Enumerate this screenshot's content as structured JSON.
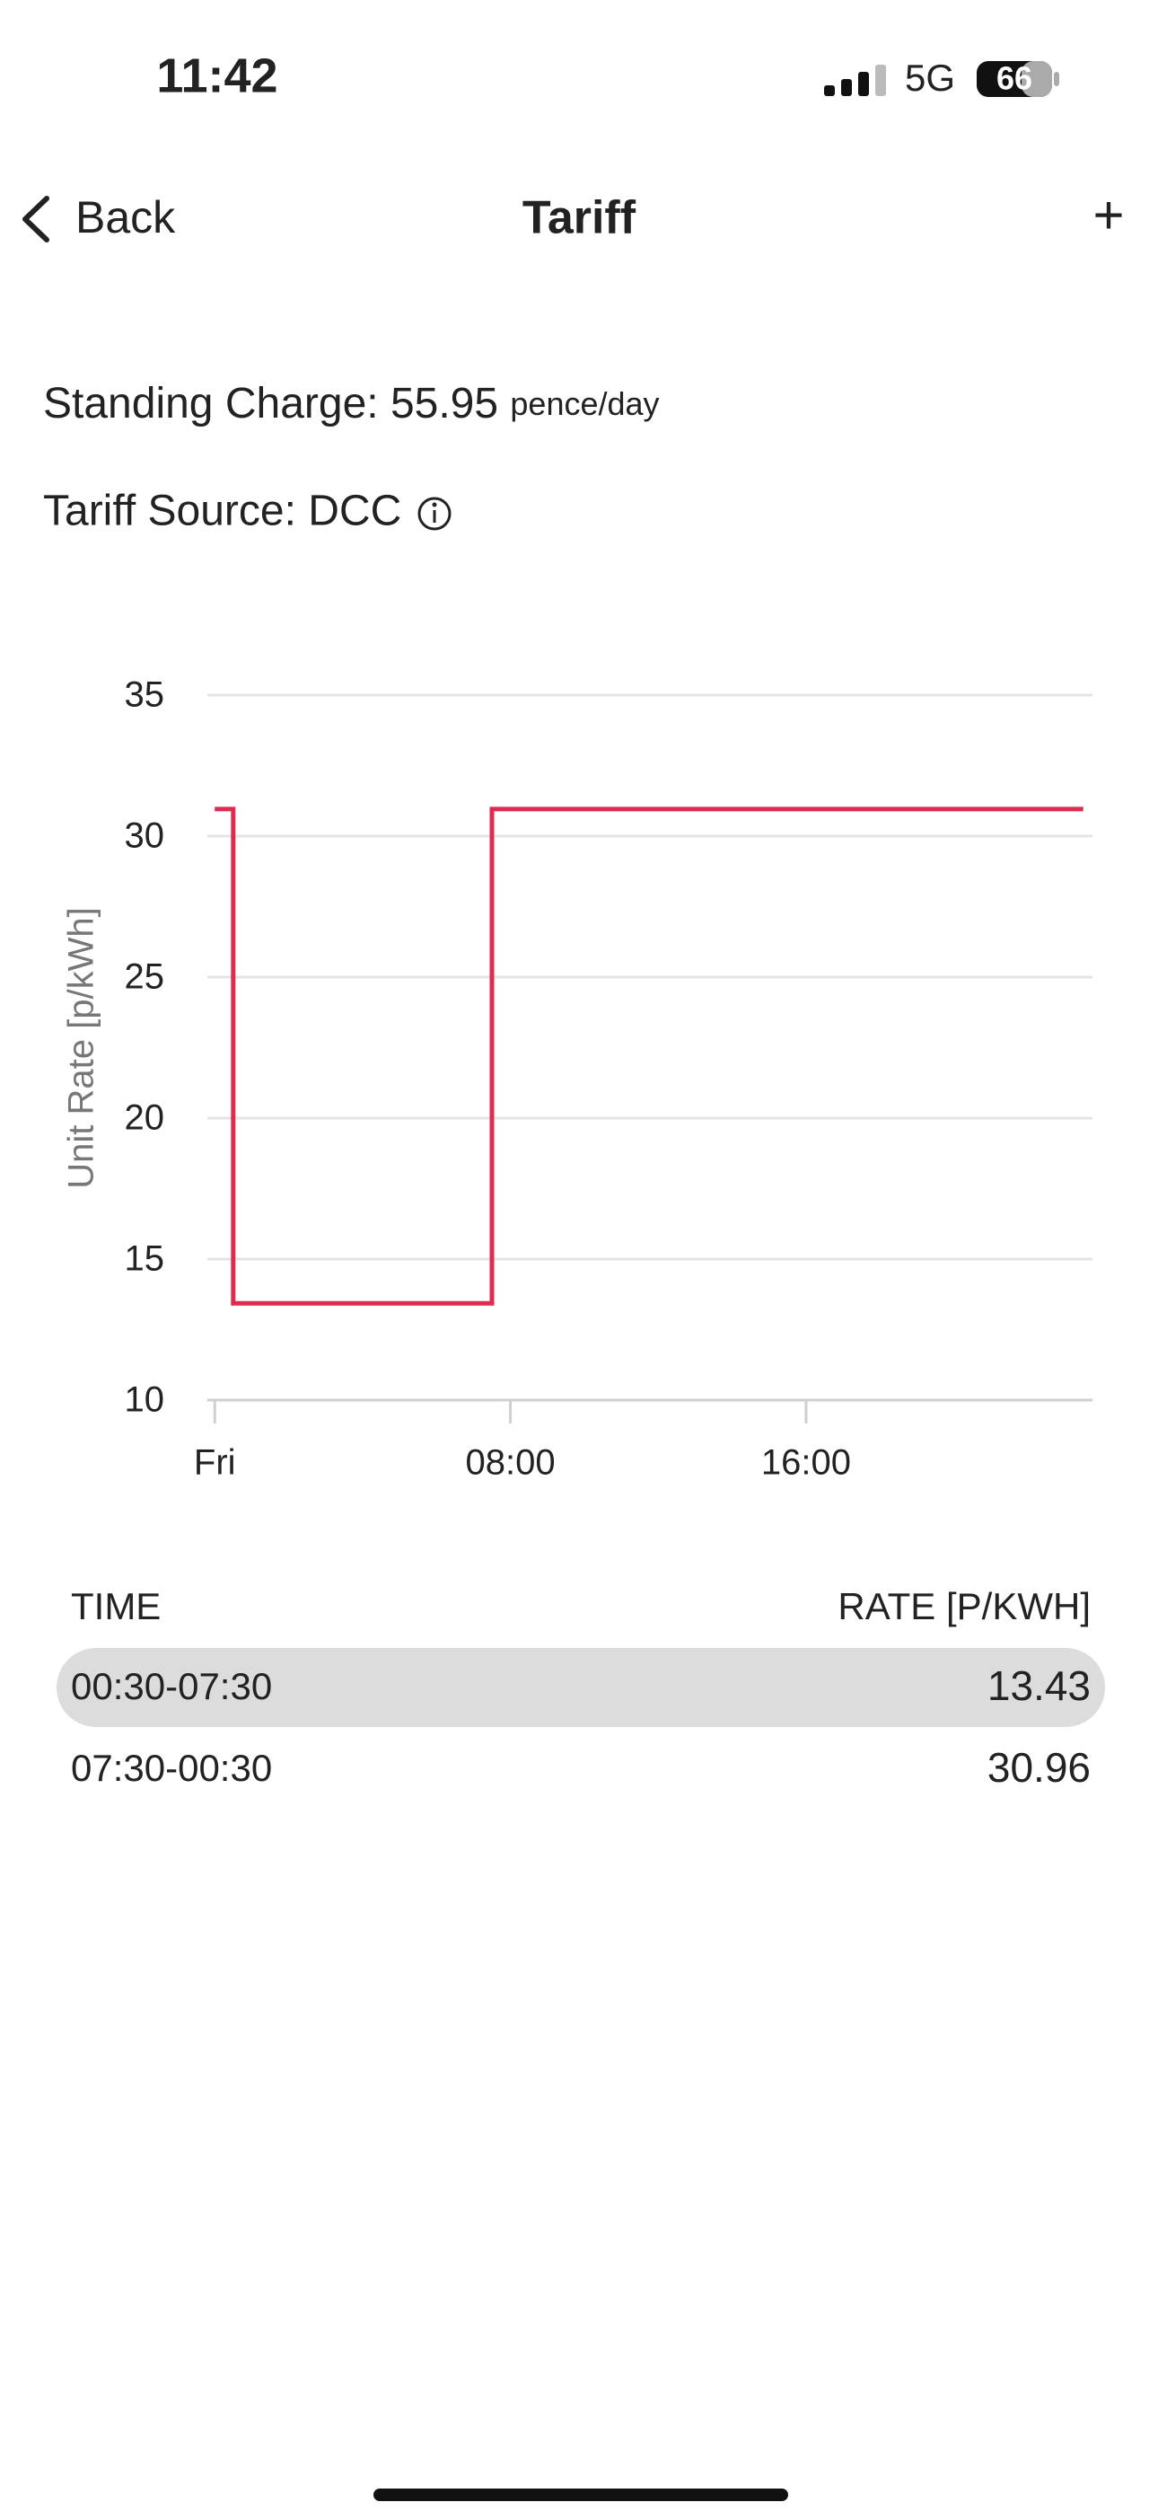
{
  "status_bar": {
    "time": "11:42",
    "network": "5G",
    "battery": "66"
  },
  "nav": {
    "back": "Back",
    "title": "Tariff",
    "action": "+"
  },
  "info": {
    "standing_label": "Standing Charge:",
    "standing_value": "55.95",
    "standing_unit": "pence/day",
    "source": "Tariff Source: DCC"
  },
  "chart_data": {
    "type": "line",
    "y_label": "Unit Rate [p/kWh]",
    "x": [
      0,
      0.5,
      0.5,
      7.5,
      7.5,
      23.5
    ],
    "values": [
      30.96,
      30.96,
      13.43,
      13.43,
      30.96,
      30.96
    ],
    "color": "#e02a4f",
    "xlim": [
      -0.2,
      23.75
    ],
    "xticks": [
      {
        "value": 0,
        "label": "Fri"
      },
      {
        "value": 8,
        "label": "08:00"
      },
      {
        "value": 16,
        "label": "16:00"
      }
    ],
    "ylim": [
      10,
      35
    ],
    "yticks": [
      10,
      15,
      20,
      25,
      30,
      35
    ],
    "grid": true
  },
  "table": {
    "header": [
      "TIME",
      "RATE [P/KWH]"
    ],
    "rows": [
      [
        "00:30-07:30",
        "13.43"
      ],
      [
        "07:30-00:30",
        "30.96"
      ]
    ]
  }
}
